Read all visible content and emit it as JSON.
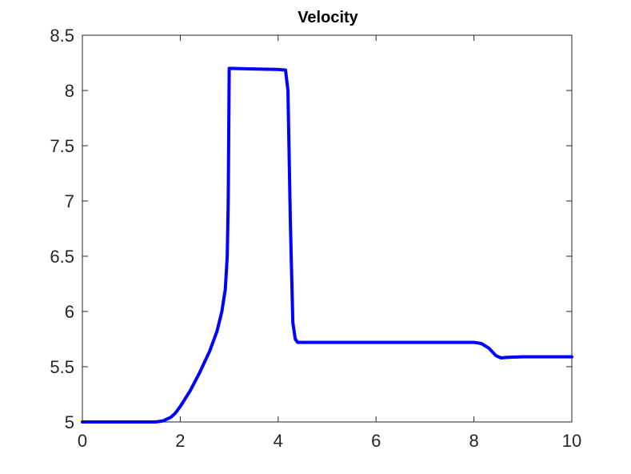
{
  "chart_data": {
    "type": "line",
    "title": "Velocity",
    "xlabel": "",
    "ylabel": "",
    "xlim": [
      0,
      10
    ],
    "ylim": [
      5,
      8.5
    ],
    "x_ticks": [
      0,
      2,
      4,
      6,
      8,
      10
    ],
    "y_ticks": [
      5,
      5.5,
      6,
      6.5,
      7,
      7.5,
      8,
      8.5
    ],
    "x_tick_labels": [
      "0",
      "2",
      "4",
      "6",
      "8",
      "10"
    ],
    "y_tick_labels": [
      "5",
      "5.5",
      "6",
      "6.5",
      "7",
      "7.5",
      "8",
      "8.5"
    ],
    "grid": false,
    "legend": "none",
    "series": [
      {
        "color": "#0000ff",
        "x": [
          0,
          1.0,
          1.5,
          1.65,
          1.8,
          1.9,
          2.0,
          2.2,
          2.4,
          2.6,
          2.75,
          2.85,
          2.92,
          2.96,
          2.98,
          3.0,
          3.5,
          4.0,
          4.15,
          4.2,
          4.25,
          4.3,
          4.35,
          4.4,
          5.0,
          6.0,
          7.0,
          8.0,
          8.15,
          8.3,
          8.45,
          8.55,
          8.7,
          9.0,
          10.0
        ],
        "y": [
          5.0,
          5.0,
          5.0,
          5.01,
          5.04,
          5.08,
          5.14,
          5.28,
          5.45,
          5.64,
          5.82,
          6.0,
          6.2,
          6.5,
          7.0,
          8.2,
          8.195,
          8.19,
          8.185,
          8.0,
          6.8,
          5.9,
          5.75,
          5.72,
          5.72,
          5.72,
          5.72,
          5.72,
          5.71,
          5.67,
          5.6,
          5.58,
          5.585,
          5.59,
          5.59
        ]
      }
    ]
  }
}
